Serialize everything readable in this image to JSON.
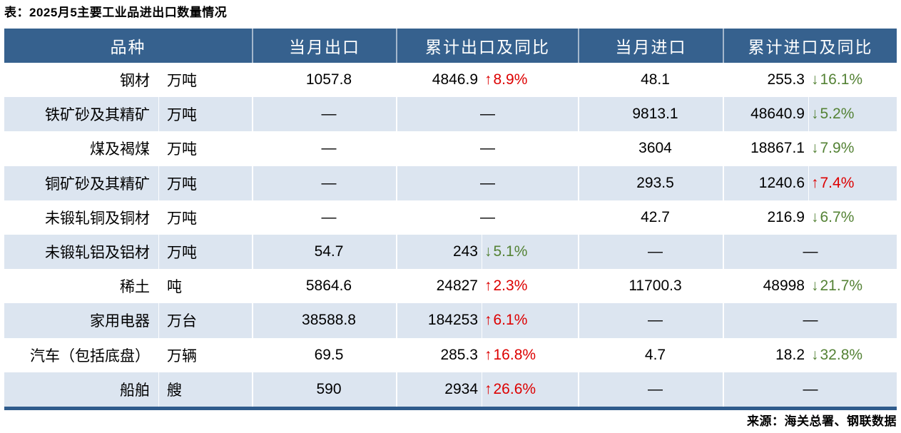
{
  "title": "表：2025月5主要工业品进出口数量情况",
  "source": "来源：海关总署、钢联数据",
  "arrows": {
    "up": "↑",
    "down": "↓"
  },
  "colors": {
    "header_bg": "#36618e",
    "stripe_bg": "#dce5f0",
    "bottom_border": "#2f5b8c",
    "up": "#dd0000",
    "down": "#548235",
    "header_text": "#ffffff",
    "body_text": "#000000"
  },
  "chart_data": {
    "type": "table",
    "title": "表：2025月5主要工业品进出口数量情况",
    "header": [
      "品种",
      "当月出口",
      "累计出口及同比",
      "当月进口",
      "累计进口及同比"
    ],
    "dash": "—",
    "rows": [
      {
        "name": "钢材",
        "unit": "万吨",
        "cur_export": "1057.8",
        "cum_export_value": "4846.9",
        "cum_export_dir": "up",
        "cum_export_pct": "8.9%",
        "cur_import": "48.1",
        "cum_import_value": "255.3",
        "cum_import_dir": "down",
        "cum_import_pct": "16.1%"
      },
      {
        "name": "铁矿砂及其精矿",
        "unit": "万吨",
        "cur_export": "—",
        "cum_export_value": "—",
        "cum_export_dir": null,
        "cum_export_pct": null,
        "cur_import": "9813.1",
        "cum_import_value": "48640.9",
        "cum_import_dir": "down",
        "cum_import_pct": "5.2%"
      },
      {
        "name": "煤及褐煤",
        "unit": "万吨",
        "cur_export": "—",
        "cum_export_value": "—",
        "cum_export_dir": null,
        "cum_export_pct": null,
        "cur_import": "3604",
        "cum_import_value": "18867.1",
        "cum_import_dir": "down",
        "cum_import_pct": "7.9%"
      },
      {
        "name": "铜矿砂及其精矿",
        "unit": "万吨",
        "cur_export": "—",
        "cum_export_value": "—",
        "cum_export_dir": null,
        "cum_export_pct": null,
        "cur_import": "293.5",
        "cum_import_value": "1240.6",
        "cum_import_dir": "up",
        "cum_import_pct": "7.4%"
      },
      {
        "name": "未锻轧铜及铜材",
        "unit": "万吨",
        "cur_export": "—",
        "cum_export_value": "—",
        "cum_export_dir": null,
        "cum_export_pct": null,
        "cur_import": "42.7",
        "cum_import_value": "216.9",
        "cum_import_dir": "down",
        "cum_import_pct": "6.7%"
      },
      {
        "name": "未锻轧铝及铝材",
        "unit": "万吨",
        "cur_export": "54.7",
        "cum_export_value": "243",
        "cum_export_dir": "down",
        "cum_export_pct": "5.1%",
        "cur_import": "—",
        "cum_import_value": "—",
        "cum_import_dir": null,
        "cum_import_pct": null
      },
      {
        "name": "稀土",
        "unit": "吨",
        "cur_export": "5864.6",
        "cum_export_value": "24827",
        "cum_export_dir": "up",
        "cum_export_pct": "2.3%",
        "cur_import": "11700.3",
        "cum_import_value": "48998",
        "cum_import_dir": "down",
        "cum_import_pct": "21.7%"
      },
      {
        "name": "家用电器",
        "unit": "万台",
        "cur_export": "38588.8",
        "cum_export_value": "184253",
        "cum_export_dir": "up",
        "cum_export_pct": "6.1%",
        "cur_import": "—",
        "cum_import_value": "—",
        "cum_import_dir": null,
        "cum_import_pct": null
      },
      {
        "name": "汽车（包括底盘）",
        "unit": "万辆",
        "cur_export": "69.5",
        "cum_export_value": "285.3",
        "cum_export_dir": "up",
        "cum_export_pct": "16.8%",
        "cur_import": "4.7",
        "cum_import_value": "18.2",
        "cum_import_dir": "down",
        "cum_import_pct": "32.8%"
      },
      {
        "name": "船舶",
        "unit": "艘",
        "cur_export": "590",
        "cum_export_value": "2934",
        "cum_export_dir": "up",
        "cum_export_pct": "26.6%",
        "cur_import": "—",
        "cum_import_value": "—",
        "cum_import_dir": null,
        "cum_import_pct": null
      }
    ]
  }
}
